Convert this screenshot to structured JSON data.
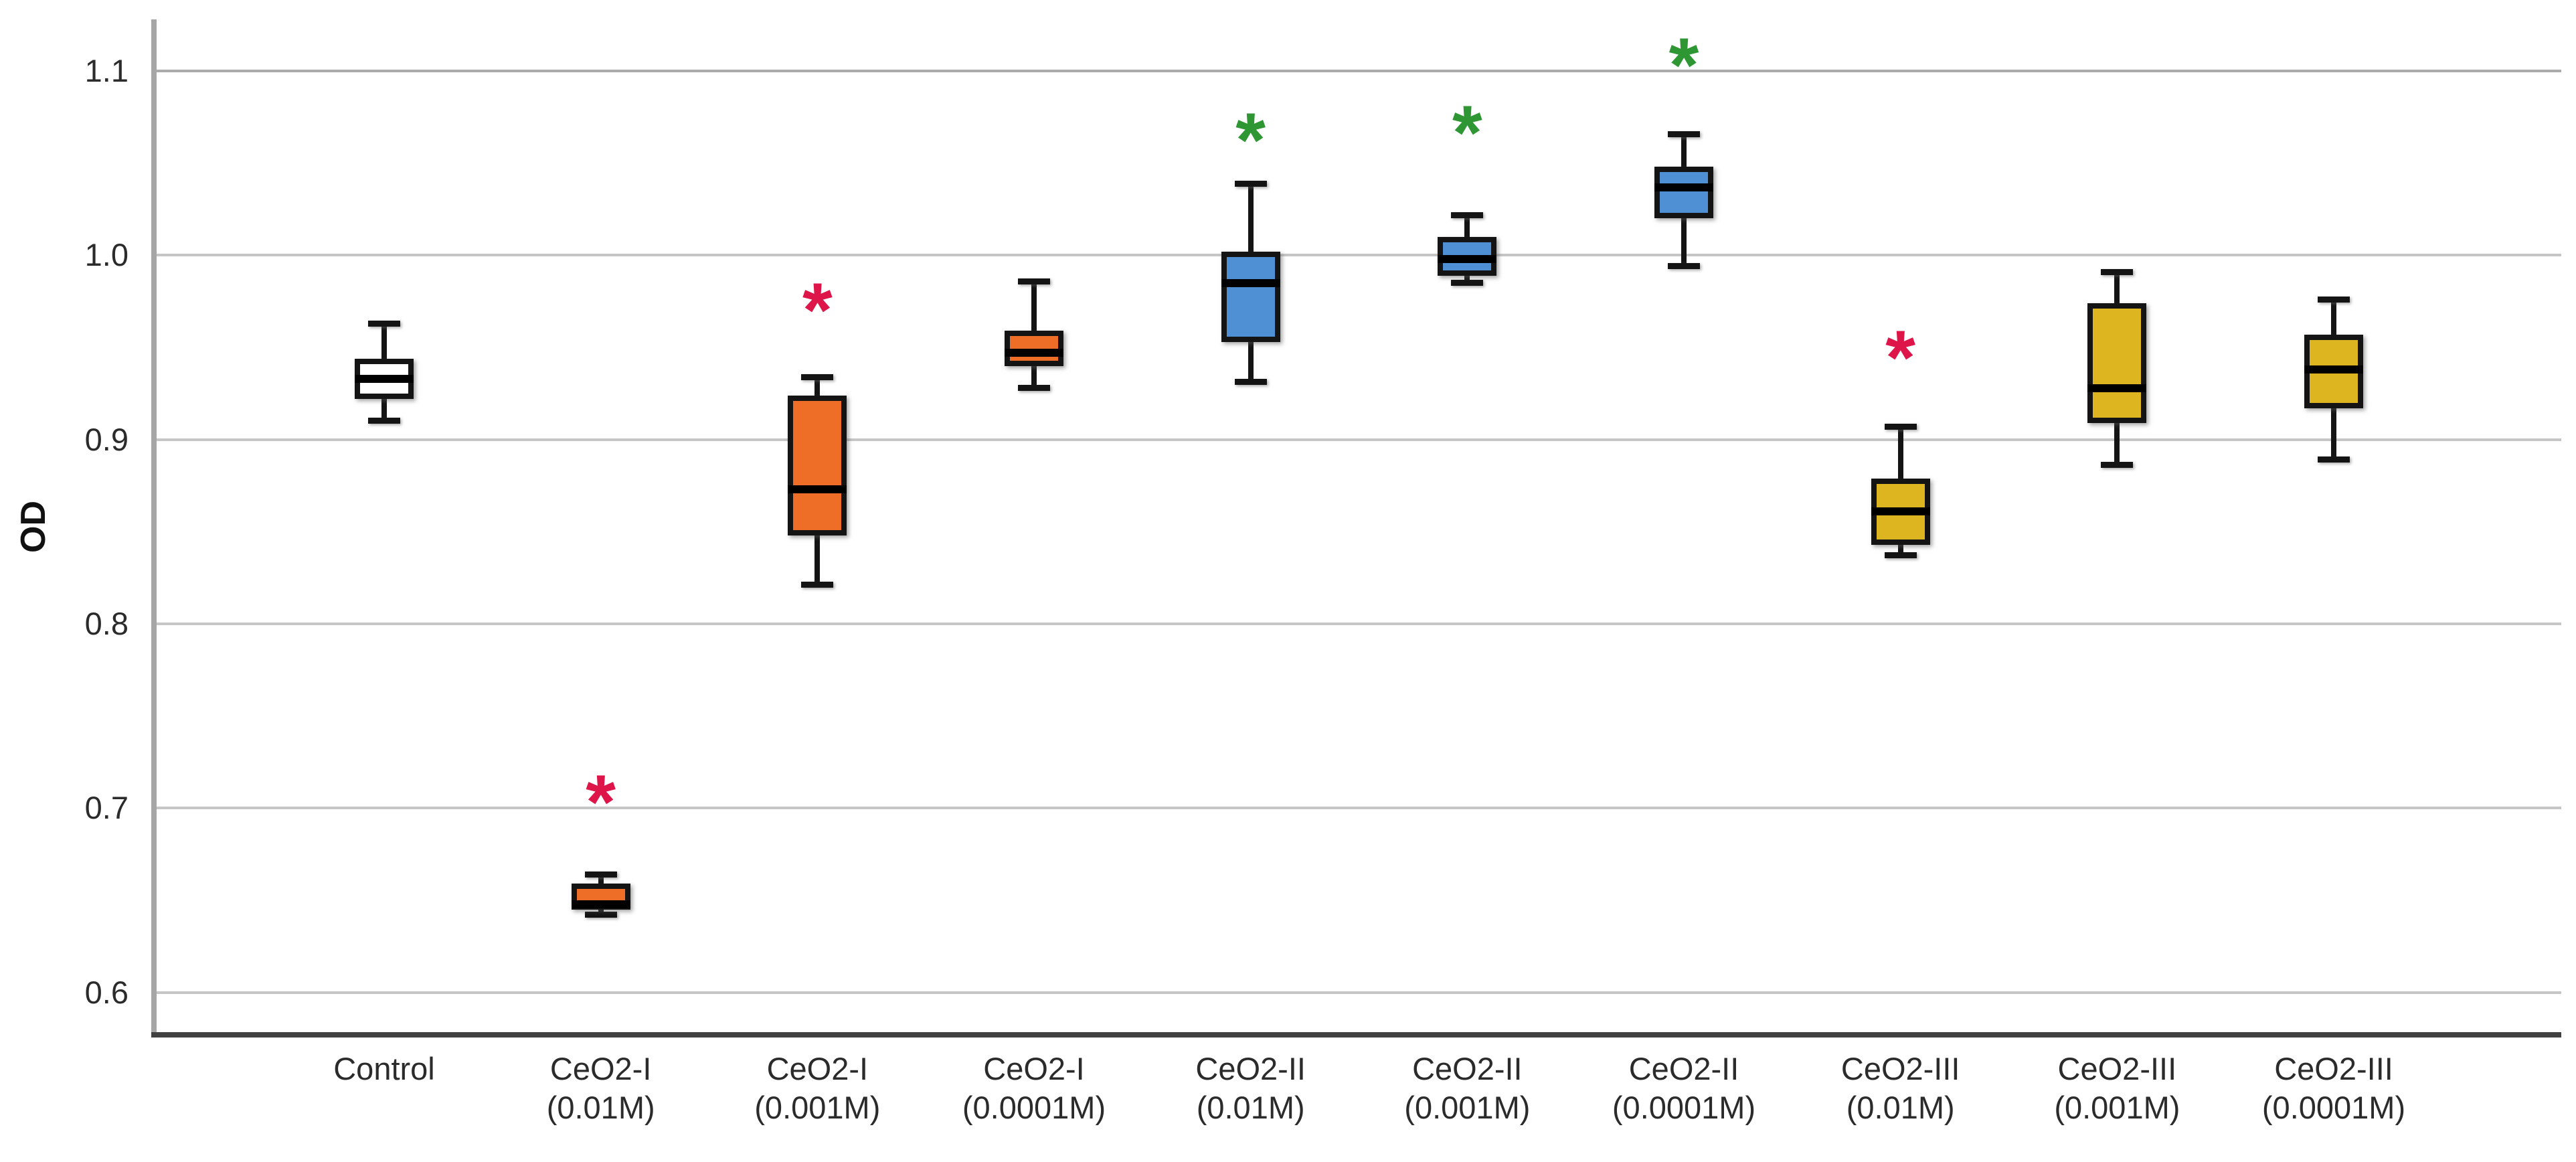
{
  "chart_data": {
    "type": "boxplot",
    "title": "",
    "xlabel": "",
    "ylabel": "OD",
    "ylim": [
      0.577,
      1.128
    ],
    "yticks": [
      1.1,
      1.0,
      0.9,
      0.8,
      0.7,
      0.6
    ],
    "ytick_labels": [
      "1.1",
      "1.0",
      "0.9",
      "0.8",
      "0.7",
      "0.6"
    ],
    "grid": true,
    "legend": false,
    "categories": [
      "Control",
      "CeO2-I (0.01M)",
      "CeO2-I (0.001M)",
      "CeO2-I (0.0001M)",
      "CeO2-II (0.01M)",
      "CeO2-II (0.001M)",
      "CeO2-II (0.0001M)",
      "CeO2-III (0.01M)",
      "CeO2-III (0.001M)",
      "CeO2-III (0.0001M)"
    ],
    "boxes": [
      {
        "label_line1": "Control",
        "label_line2": "",
        "fill": "#FFFFFF",
        "whisker_low": 0.91,
        "q1": 0.922,
        "median": 0.933,
        "q3": 0.944,
        "whisker_high": 0.963,
        "marker": null
      },
      {
        "label_line1": "CeO2-I",
        "label_line2": "(0.01M)",
        "fill": "#EE6E28",
        "whisker_low": 0.642,
        "q1": 0.645,
        "median": 0.648,
        "q3": 0.659,
        "whisker_high": 0.664,
        "marker": {
          "symbol": "*",
          "color": "#DE1548",
          "value": 0.71
        }
      },
      {
        "label_line1": "CeO2-I",
        "label_line2": "(0.001M)",
        "fill": "#EE6E28",
        "whisker_low": 0.821,
        "q1": 0.848,
        "median": 0.873,
        "q3": 0.924,
        "whisker_high": 0.934,
        "marker": {
          "symbol": "*",
          "color": "#DE1548",
          "value": 0.977
        }
      },
      {
        "label_line1": "CeO2-I",
        "label_line2": "(0.0001M)",
        "fill": "#EE6E28",
        "whisker_low": 0.928,
        "q1": 0.94,
        "median": 0.947,
        "q3": 0.959,
        "whisker_high": 0.986,
        "marker": null
      },
      {
        "label_line1": "CeO2-II",
        "label_line2": "(0.01M)",
        "fill": "#4F90D5",
        "whisker_low": 0.931,
        "q1": 0.953,
        "median": 0.985,
        "q3": 1.002,
        "whisker_high": 1.039,
        "marker": {
          "symbol": "*",
          "color": "#2E9633",
          "value": 1.069
        }
      },
      {
        "label_line1": "CeO2-II",
        "label_line2": "(0.001M)",
        "fill": "#4F90D5",
        "whisker_low": 0.985,
        "q1": 0.989,
        "median": 0.998,
        "q3": 1.01,
        "whisker_high": 1.022,
        "marker": {
          "symbol": "*",
          "color": "#2E9633",
          "value": 1.073
        }
      },
      {
        "label_line1": "CeO2-II",
        "label_line2": "(0.0001M)",
        "fill": "#4F90D5",
        "whisker_low": 0.994,
        "q1": 1.02,
        "median": 1.037,
        "q3": 1.048,
        "whisker_high": 1.066,
        "marker": {
          "symbol": "*",
          "color": "#2E9633",
          "value": 1.11
        }
      },
      {
        "label_line1": "CeO2-III",
        "label_line2": "(0.01M)",
        "fill": "#DCB520",
        "whisker_low": 0.837,
        "q1": 0.843,
        "median": 0.861,
        "q3": 0.879,
        "whisker_high": 0.907,
        "marker": {
          "symbol": "*",
          "color": "#DE1548",
          "value": 0.951
        }
      },
      {
        "label_line1": "CeO2-III",
        "label_line2": "(0.001M)",
        "fill": "#DCB520",
        "whisker_low": 0.886,
        "q1": 0.909,
        "median": 0.928,
        "q3": 0.974,
        "whisker_high": 0.991,
        "marker": null
      },
      {
        "label_line1": "CeO2-III",
        "label_line2": "(0.0001M)",
        "fill": "#DCB520",
        "whisker_low": 0.889,
        "q1": 0.917,
        "median": 0.938,
        "q3": 0.957,
        "whisker_high": 0.976,
        "marker": null
      }
    ],
    "colors": {
      "control_fill": "#FFFFFF",
      "ceo2_1_fill": "#EE6E28",
      "ceo2_2_fill": "#4F90D5",
      "ceo2_3_fill": "#DCB520",
      "significant_decrease_marker": "#DE1548",
      "significant_increase_marker": "#2E9633",
      "box_border": "#141414",
      "median": "#000000",
      "gridline": "#C6C6C6",
      "x_axis": "#414141",
      "y_axis": "#A6A6A6",
      "text": "#2B2B2B"
    }
  }
}
